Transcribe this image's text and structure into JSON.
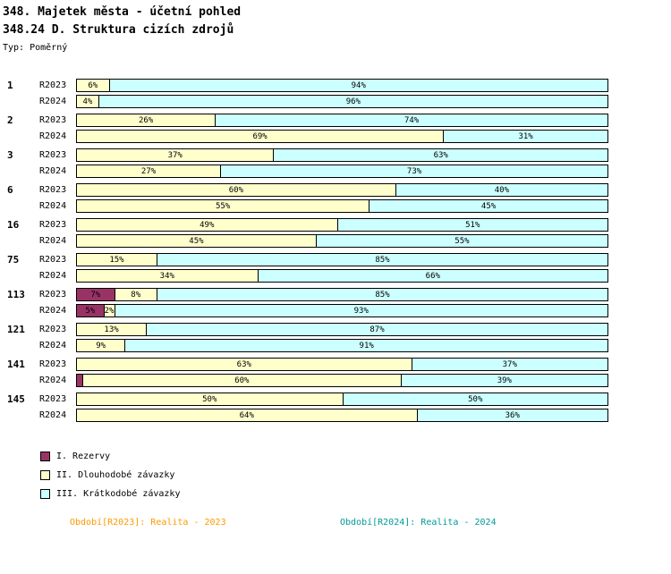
{
  "header": {
    "title": "348. Majetek města - účetní pohled",
    "subtitle": "348.24 D. Struktura cizích zdrojů",
    "type_label": "Typ: Poměrný"
  },
  "chart_data": {
    "type": "bar",
    "orientation": "horizontal",
    "stacked": true,
    "unit": "%",
    "xlim": [
      0,
      100
    ],
    "label_min_value": 2,
    "series": [
      {
        "id": "I",
        "name": "I. Rezervy",
        "color": "#993366"
      },
      {
        "id": "II",
        "name": "II. Dlouhodobé závazky",
        "color": "#FFFFCC"
      },
      {
        "id": "III",
        "name": "III. Krátkodobé závazky",
        "color": "#CCFFFF"
      }
    ],
    "groups": [
      {
        "group": "1",
        "bars": [
          {
            "period": "R2023",
            "values": {
              "I": 0,
              "II": 6,
              "III": 94
            }
          },
          {
            "period": "R2024",
            "values": {
              "I": 0,
              "II": 4,
              "III": 96
            }
          }
        ]
      },
      {
        "group": "2",
        "bars": [
          {
            "period": "R2023",
            "values": {
              "I": 0,
              "II": 26,
              "III": 74
            }
          },
          {
            "period": "R2024",
            "values": {
              "I": 0,
              "II": 69,
              "III": 31
            }
          }
        ]
      },
      {
        "group": "3",
        "bars": [
          {
            "period": "R2023",
            "values": {
              "I": 0,
              "II": 37,
              "III": 63
            }
          },
          {
            "period": "R2024",
            "values": {
              "I": 0,
              "II": 27,
              "III": 73
            }
          }
        ]
      },
      {
        "group": "6",
        "bars": [
          {
            "period": "R2023",
            "values": {
              "I": 0,
              "II": 60,
              "III": 40
            }
          },
          {
            "period": "R2024",
            "values": {
              "I": 0,
              "II": 55,
              "III": 45
            }
          }
        ]
      },
      {
        "group": "16",
        "bars": [
          {
            "period": "R2023",
            "values": {
              "I": 0,
              "II": 49,
              "III": 51
            }
          },
          {
            "period": "R2024",
            "values": {
              "I": 0,
              "II": 45,
              "III": 55
            }
          }
        ]
      },
      {
        "group": "75",
        "bars": [
          {
            "period": "R2023",
            "values": {
              "I": 0,
              "II": 15,
              "III": 85
            }
          },
          {
            "period": "R2024",
            "values": {
              "I": 0,
              "II": 34,
              "III": 66
            }
          }
        ]
      },
      {
        "group": "113",
        "bars": [
          {
            "period": "R2023",
            "values": {
              "I": 7,
              "II": 8,
              "III": 85
            }
          },
          {
            "period": "R2024",
            "values": {
              "I": 5,
              "II": 2,
              "III": 93
            }
          }
        ]
      },
      {
        "group": "121",
        "bars": [
          {
            "period": "R2023",
            "values": {
              "I": 0,
              "II": 13,
              "III": 87
            }
          },
          {
            "period": "R2024",
            "values": {
              "I": 0,
              "II": 9,
              "III": 91
            }
          }
        ]
      },
      {
        "group": "141",
        "bars": [
          {
            "period": "R2023",
            "values": {
              "I": 0,
              "II": 63,
              "III": 37
            }
          },
          {
            "period": "R2024",
            "values": {
              "I": 1,
              "II": 60,
              "III": 39
            }
          }
        ]
      },
      {
        "group": "145",
        "bars": [
          {
            "period": "R2023",
            "values": {
              "I": 0,
              "II": 50,
              "III": 50
            }
          },
          {
            "period": "R2024",
            "values": {
              "I": 0,
              "II": 64,
              "III": 36
            }
          }
        ]
      }
    ]
  },
  "legend": {
    "items": [
      {
        "label": "I. Rezervy",
        "color": "#993366"
      },
      {
        "label": "II. Dlouhodobé závazky",
        "color": "#FFFFCC"
      },
      {
        "label": "III. Krátkodobé závazky",
        "color": "#CCFFFF"
      }
    ]
  },
  "footer": {
    "left": {
      "text": "Období[R2023]: Realita - 2023",
      "color": "#FF9900"
    },
    "right": {
      "text": "Období[R2024]: Realita - 2024",
      "color": "#009999"
    }
  }
}
